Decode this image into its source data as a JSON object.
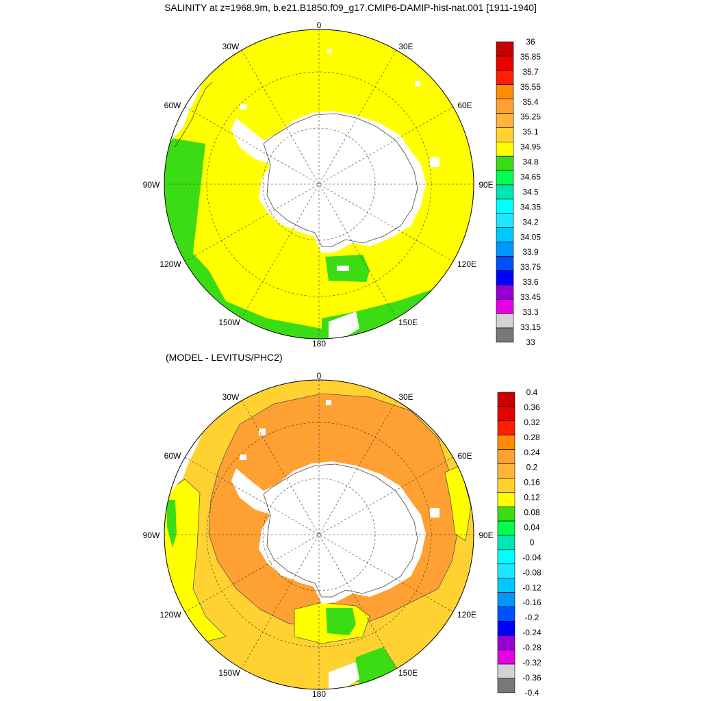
{
  "title": "SALINITY at z=1968.9m, b.e21.B1850.f09_g17.CMIP6-DAMIP-hist-nat.001 [1911-1940]",
  "subtitle": "(MODEL - LEVITUS/PHC2)",
  "longitude_labels": {
    "n0": "0",
    "n30e": "30E",
    "n60e": "60E",
    "n90e": "90E",
    "n120e": "120E",
    "n150e": "150E",
    "n180": "180",
    "n150w": "150W",
    "n120w": "120W",
    "n90w": "90W",
    "n60w": "60W",
    "n30w": "30W"
  },
  "colorbar_top": {
    "labels": [
      "36",
      "35.85",
      "35.7",
      "35.55",
      "35.4",
      "35.25",
      "35.1",
      "34.95",
      "34.8",
      "34.65",
      "34.5",
      "34.35",
      "34.2",
      "34.05",
      "33.9",
      "33.75",
      "33.6",
      "33.45",
      "33.3",
      "33.15",
      "33"
    ],
    "colors": [
      "#c80000",
      "#e60000",
      "#ff1e00",
      "#ff8c00",
      "#ffa032",
      "#ffb43c",
      "#ffd232",
      "#ffff00",
      "#3cdc14",
      "#00ff50",
      "#00e6b4",
      "#00ffff",
      "#1ee6ff",
      "#00c8ff",
      "#0096ff",
      "#0050ff",
      "#0000ff",
      "#9600d2",
      "#e600e6",
      "#d2d2d2",
      "#787878"
    ]
  },
  "colorbar_bottom": {
    "labels": [
      "0.4",
      "0.36",
      "0.32",
      "0.28",
      "0.24",
      "0.2",
      "0.16",
      "0.12",
      "0.08",
      "0.04",
      "0",
      "-0.04",
      "-0.08",
      "-0.12",
      "-0.16",
      "-0.2",
      "-0.24",
      "-0.28",
      "-0.32",
      "-0.36",
      "-0.4"
    ],
    "colors": [
      "#c80000",
      "#e60000",
      "#ff1e00",
      "#ff8c00",
      "#ffa032",
      "#ffb43c",
      "#ffd232",
      "#ffff00",
      "#3cdc14",
      "#00ff50",
      "#00e6b4",
      "#00ffff",
      "#1ee6ff",
      "#00c8ff",
      "#0096ff",
      "#0050ff",
      "#0000ff",
      "#9600d2",
      "#e600e6",
      "#d2d2d2",
      "#787878"
    ]
  },
  "field_colors": {
    "top_main": "#ffff00",
    "top_low": "#3cdc14",
    "bottom_main": "#ffd232",
    "bottom_high": "#ffa032",
    "bottom_yellow": "#ffff00",
    "bottom_green": "#3cdc14",
    "land": "#ffffff"
  }
}
